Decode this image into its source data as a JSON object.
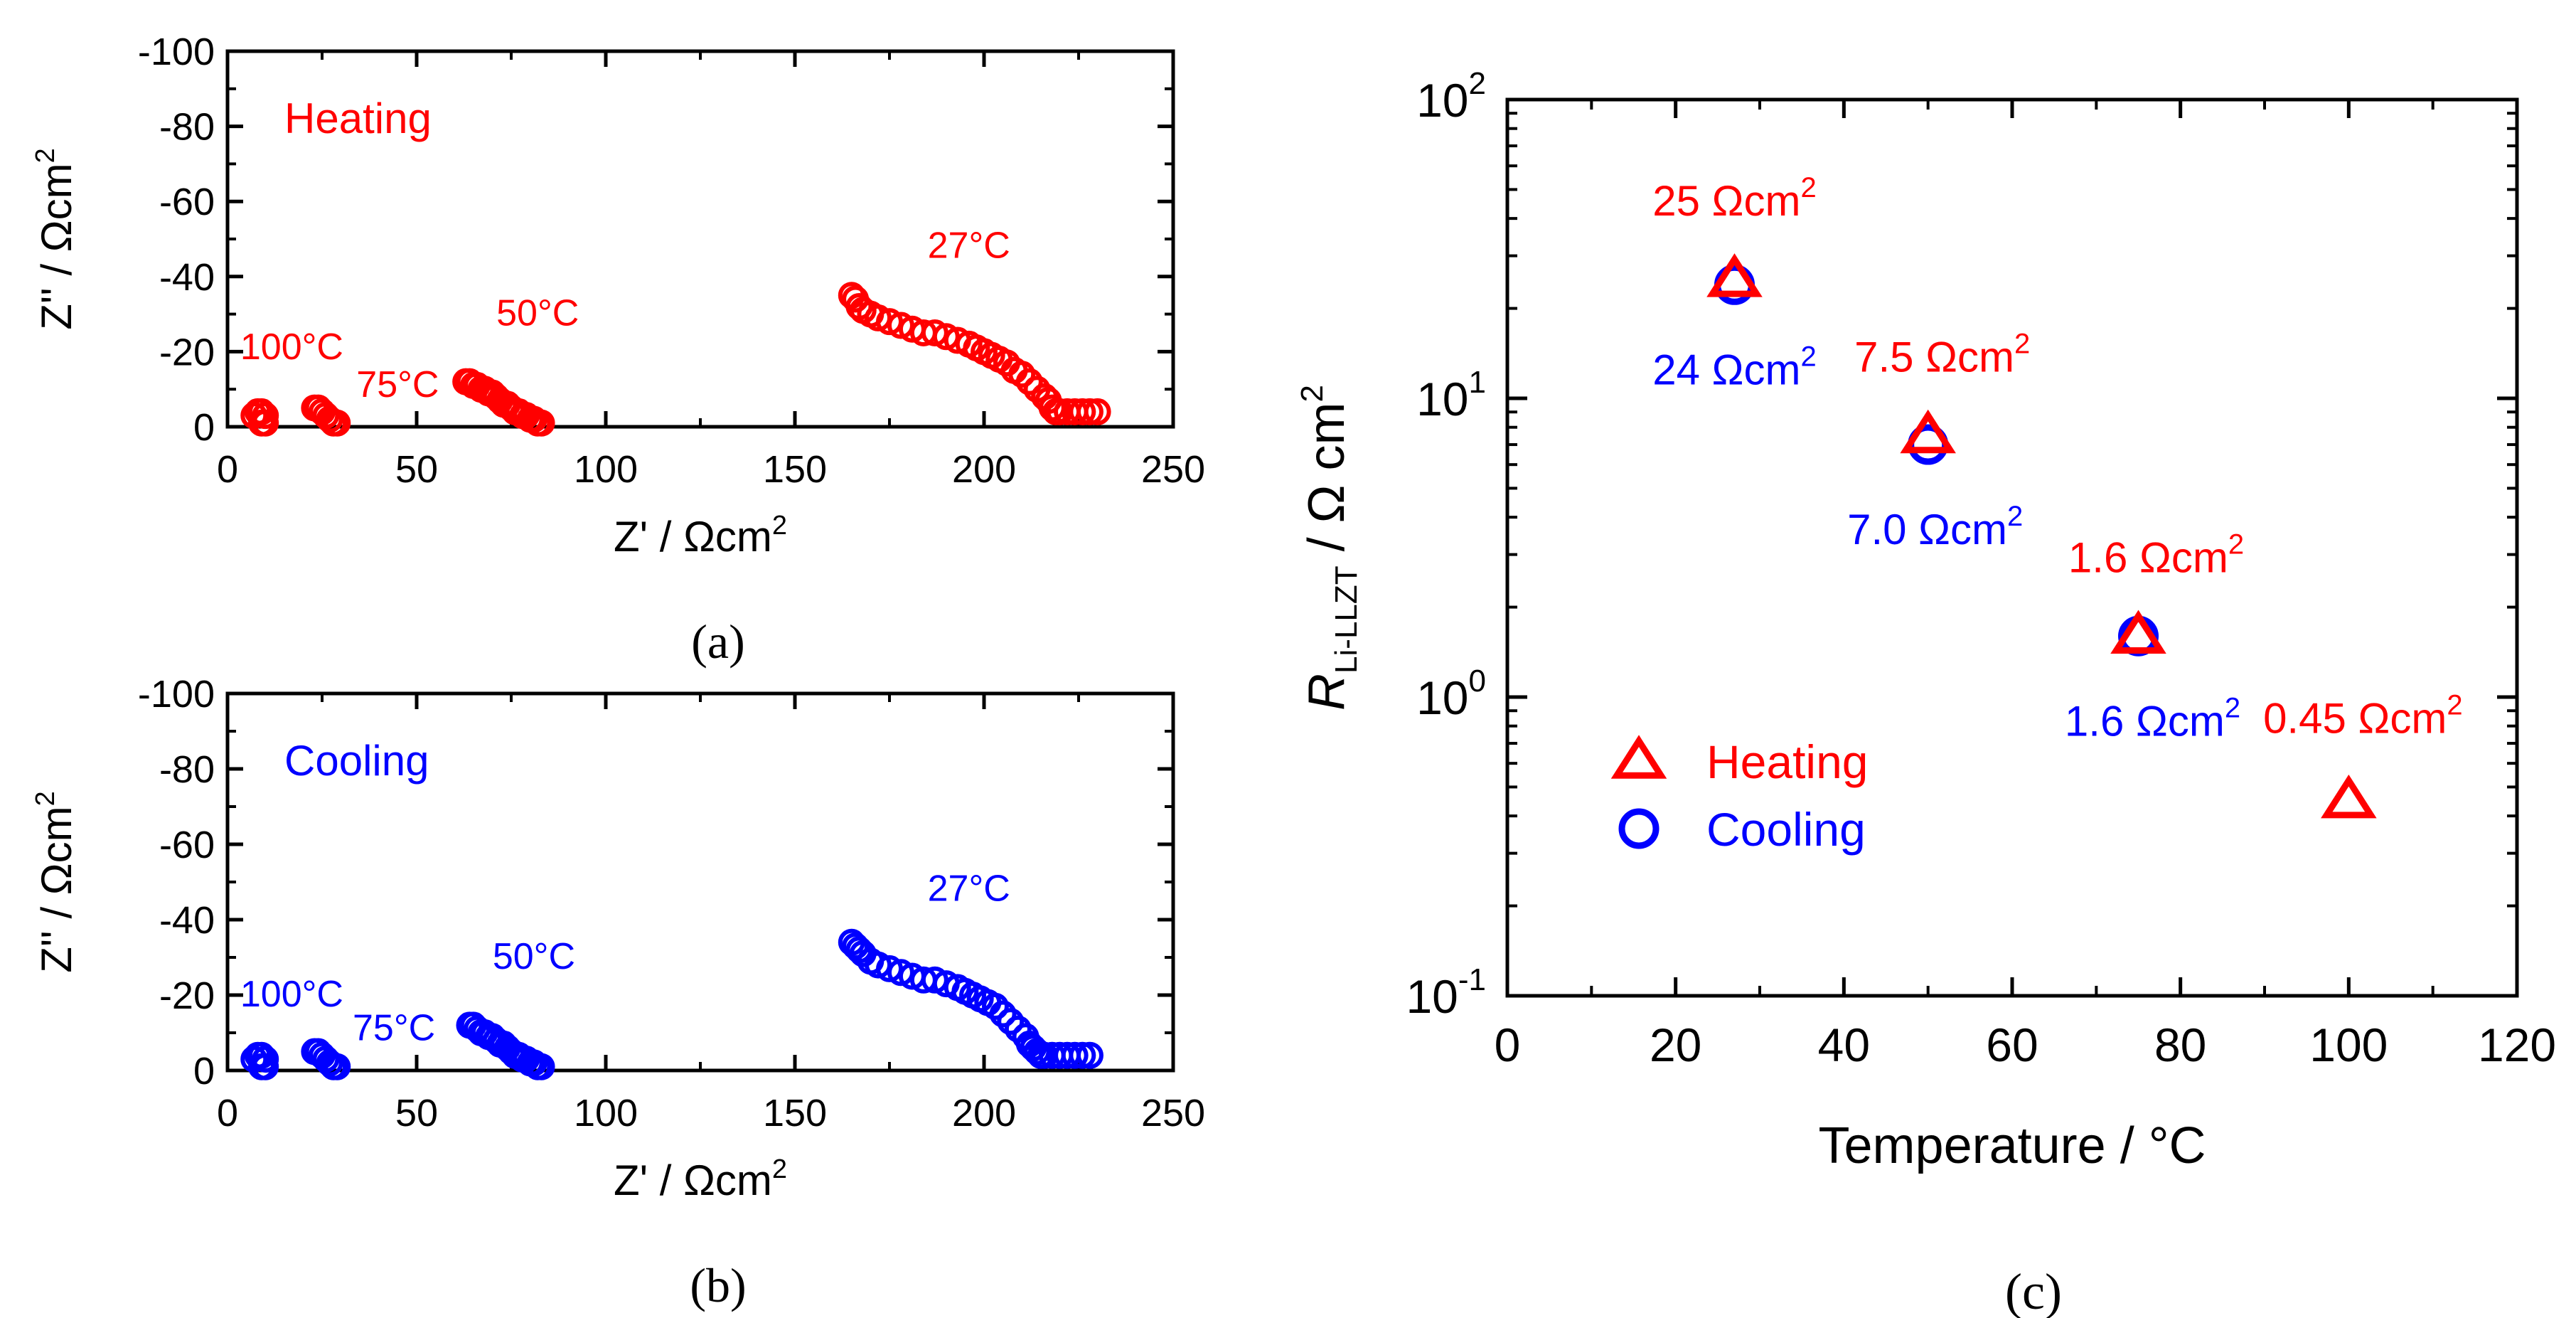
{
  "colors": {
    "heating": "#ff0000",
    "cooling": "#0000ff",
    "axis": "#000000"
  },
  "panel_labels": [
    "(a)",
    "(b)",
    "(c)"
  ],
  "chart_data": [
    {
      "id": "a",
      "type": "scatter",
      "panel_label": "(a)",
      "condition_label": "Heating",
      "color": "#ff0000",
      "xlabel": "Z' / Ωcm²",
      "ylabel": "Z'' / Ωcm²",
      "xlim": [
        0,
        250
      ],
      "ylim": [
        0,
        -100
      ],
      "xticks": [
        0,
        50,
        100,
        150,
        200,
        250
      ],
      "yticks": [
        0,
        -20,
        -40,
        -60,
        -80,
        -100
      ],
      "xtick_labels": [
        "0",
        "50",
        "100",
        "150",
        "200",
        "250"
      ],
      "ytick_labels": [
        "0",
        "-20",
        "-40",
        "-60",
        "-80",
        "-100"
      ],
      "annotations": [
        {
          "text": "100°C",
          "x": 17,
          "y": -18
        },
        {
          "text": "75°C",
          "x": 45,
          "y": -8
        },
        {
          "text": "50°C",
          "x": 82,
          "y": -27
        },
        {
          "text": "27°C",
          "x": 196,
          "y": -45
        }
      ],
      "series": [
        {
          "temperature": "100°C",
          "points": [
            [
              7,
              -3
            ],
            [
              8,
              -4
            ],
            [
              9,
              -4
            ],
            [
              10,
              -3
            ],
            [
              10,
              -1
            ],
            [
              9,
              -1
            ]
          ]
        },
        {
          "temperature": "75°C",
          "points": [
            [
              23,
              -5
            ],
            [
              24,
              -5
            ],
            [
              25,
              -4
            ],
            [
              26,
              -3
            ],
            [
              27,
              -2
            ],
            [
              28,
              -1
            ],
            [
              29,
              -1
            ]
          ]
        },
        {
          "temperature": "50°C",
          "points": [
            [
              63,
              -12
            ],
            [
              64,
              -12
            ],
            [
              65,
              -11
            ],
            [
              66,
              -11
            ],
            [
              67,
              -10
            ],
            [
              68,
              -10
            ],
            [
              69,
              -9
            ],
            [
              70,
              -9
            ],
            [
              71,
              -8
            ],
            [
              72,
              -7
            ],
            [
              73,
              -6
            ],
            [
              74,
              -6
            ],
            [
              75,
              -5
            ],
            [
              76,
              -4
            ],
            [
              77,
              -4
            ],
            [
              78,
              -3
            ],
            [
              79,
              -3
            ],
            [
              80,
              -2
            ],
            [
              81,
              -2
            ],
            [
              82,
              -1
            ],
            [
              83,
              -1
            ]
          ]
        },
        {
          "temperature": "27°C",
          "points": [
            [
              165,
              -35
            ],
            [
              166,
              -34
            ],
            [
              167,
              -32
            ],
            [
              168,
              -31
            ],
            [
              170,
              -30
            ],
            [
              172,
              -29
            ],
            [
              175,
              -28
            ],
            [
              178,
              -27
            ],
            [
              181,
              -26
            ],
            [
              184,
              -25
            ],
            [
              187,
              -25
            ],
            [
              190,
              -24
            ],
            [
              193,
              -23
            ],
            [
              196,
              -22
            ],
            [
              198,
              -21
            ],
            [
              200,
              -20
            ],
            [
              202,
              -19
            ],
            [
              204,
              -18
            ],
            [
              206,
              -17
            ],
            [
              208,
              -15
            ],
            [
              210,
              -14
            ],
            [
              212,
              -12
            ],
            [
              214,
              -10
            ],
            [
              216,
              -8
            ],
            [
              217,
              -7
            ],
            [
              218,
              -5
            ],
            [
              219,
              -4
            ],
            [
              220,
              -4
            ],
            [
              222,
              -4
            ],
            [
              224,
              -4
            ],
            [
              226,
              -4
            ],
            [
              228,
              -4
            ],
            [
              230,
              -4
            ]
          ]
        }
      ]
    },
    {
      "id": "b",
      "type": "scatter",
      "panel_label": "(b)",
      "condition_label": "Cooling",
      "color": "#0000ff",
      "xlabel": "Z' / Ωcm²",
      "ylabel": "Z'' / Ωcm²",
      "xlim": [
        0,
        250
      ],
      "ylim": [
        0,
        -100
      ],
      "xticks": [
        0,
        50,
        100,
        150,
        200,
        250
      ],
      "yticks": [
        0,
        -20,
        -40,
        -60,
        -80,
        -100
      ],
      "xtick_labels": [
        "0",
        "50",
        "100",
        "150",
        "200",
        "250"
      ],
      "ytick_labels": [
        "0",
        "-20",
        "-40",
        "-60",
        "-80",
        "-100"
      ],
      "annotations": [
        {
          "text": "100°C",
          "x": 17,
          "y": -17
        },
        {
          "text": "75°C",
          "x": 44,
          "y": -8
        },
        {
          "text": "50°C",
          "x": 81,
          "y": -27
        },
        {
          "text": "27°C",
          "x": 196,
          "y": -45
        }
      ],
      "series": [
        {
          "temperature": "100°C",
          "points": [
            [
              7,
              -3
            ],
            [
              8,
              -4
            ],
            [
              9,
              -4
            ],
            [
              10,
              -3
            ],
            [
              10,
              -1
            ],
            [
              9,
              -1
            ]
          ]
        },
        {
          "temperature": "75°C",
          "points": [
            [
              23,
              -5
            ],
            [
              24,
              -5
            ],
            [
              25,
              -4
            ],
            [
              26,
              -3
            ],
            [
              27,
              -2
            ],
            [
              28,
              -1
            ],
            [
              29,
              -1
            ]
          ]
        },
        {
          "temperature": "50°C",
          "points": [
            [
              64,
              -12
            ],
            [
              65,
              -12
            ],
            [
              66,
              -11
            ],
            [
              67,
              -10
            ],
            [
              68,
              -10
            ],
            [
              69,
              -9
            ],
            [
              70,
              -9
            ],
            [
              71,
              -8
            ],
            [
              72,
              -7
            ],
            [
              73,
              -7
            ],
            [
              74,
              -6
            ],
            [
              75,
              -5
            ],
            [
              76,
              -4
            ],
            [
              77,
              -4
            ],
            [
              78,
              -3
            ],
            [
              79,
              -3
            ],
            [
              80,
              -2
            ],
            [
              81,
              -2
            ],
            [
              82,
              -1
            ],
            [
              83,
              -1
            ]
          ]
        },
        {
          "temperature": "27°C",
          "points": [
            [
              165,
              -34
            ],
            [
              166,
              -33
            ],
            [
              167,
              -32
            ],
            [
              168,
              -31
            ],
            [
              170,
              -29
            ],
            [
              172,
              -28
            ],
            [
              175,
              -27
            ],
            [
              178,
              -26
            ],
            [
              181,
              -25
            ],
            [
              184,
              -24
            ],
            [
              187,
              -24
            ],
            [
              190,
              -23
            ],
            [
              193,
              -22
            ],
            [
              195,
              -21
            ],
            [
              197,
              -20
            ],
            [
              199,
              -19
            ],
            [
              201,
              -18
            ],
            [
              203,
              -17
            ],
            [
              205,
              -15
            ],
            [
              207,
              -13
            ],
            [
              209,
              -11
            ],
            [
              211,
              -9
            ],
            [
              212,
              -7
            ],
            [
              213,
              -6
            ],
            [
              214,
              -5
            ],
            [
              215,
              -4
            ],
            [
              216,
              -4
            ],
            [
              218,
              -4
            ],
            [
              220,
              -4
            ],
            [
              222,
              -4
            ],
            [
              224,
              -4
            ],
            [
              226,
              -4
            ],
            [
              228,
              -4
            ]
          ]
        }
      ]
    },
    {
      "id": "c",
      "type": "scatter",
      "panel_label": "(c)",
      "xlabel": "Temperature / °C",
      "ylabel": "R_Li-LLZT / Ω cm²",
      "ylabel_main": "R",
      "ylabel_sub": "Li-LLZT",
      "ylabel_rest": " / Ω cm",
      "ylabel_sup": "2",
      "xlim": [
        0,
        120
      ],
      "ylim": [
        0.1,
        100
      ],
      "yscale": "log",
      "xticks": [
        0,
        20,
        40,
        60,
        80,
        100,
        120
      ],
      "xtick_labels": [
        "0",
        "20",
        "40",
        "60",
        "80",
        "100",
        "120"
      ],
      "ytick_labels": [
        {
          "value": 0.1,
          "base": "10",
          "exp": "-1"
        },
        {
          "value": 1,
          "base": "10",
          "exp": "0"
        },
        {
          "value": 10,
          "base": "10",
          "exp": "1"
        },
        {
          "value": 100,
          "base": "10",
          "exp": "2"
        }
      ],
      "legend": {
        "placement": "bottom-left",
        "entries": [
          {
            "name": "Heating",
            "marker": "triangle",
            "color": "#ff0000"
          },
          {
            "name": "Cooling",
            "marker": "circle",
            "color": "#0000ff"
          }
        ]
      },
      "series": [
        {
          "name": "Heating",
          "marker": "triangle",
          "x": [
            27,
            50,
            75,
            100
          ],
          "y": [
            25,
            7.5,
            1.6,
            0.45
          ]
        },
        {
          "name": "Cooling",
          "marker": "circle",
          "x": [
            27,
            50,
            75
          ],
          "y": [
            24,
            7.0,
            1.6
          ]
        }
      ],
      "annotations": [
        {
          "series": "Heating",
          "text": "25 Ωcm",
          "sup": "2",
          "x": 27,
          "y": 25
        },
        {
          "series": "Heating",
          "text": "7.5 Ωcm",
          "sup": "2",
          "x": 50,
          "y": 7.5
        },
        {
          "series": "Heating",
          "text": "1.6 Ωcm",
          "sup": "2",
          "x": 75,
          "y": 1.6
        },
        {
          "series": "Heating",
          "text": "0.45 Ωcm",
          "sup": "2",
          "x": 100,
          "y": 0.45
        },
        {
          "series": "Cooling",
          "text": "24 Ωcm",
          "sup": "2",
          "x": 27,
          "y": 24
        },
        {
          "series": "Cooling",
          "text": "7.0 Ωcm",
          "sup": "2",
          "x": 50,
          "y": 7.0
        },
        {
          "series": "Cooling",
          "text": "1.6 Ωcm",
          "sup": "2",
          "x": 75,
          "y": 1.6
        }
      ]
    }
  ]
}
